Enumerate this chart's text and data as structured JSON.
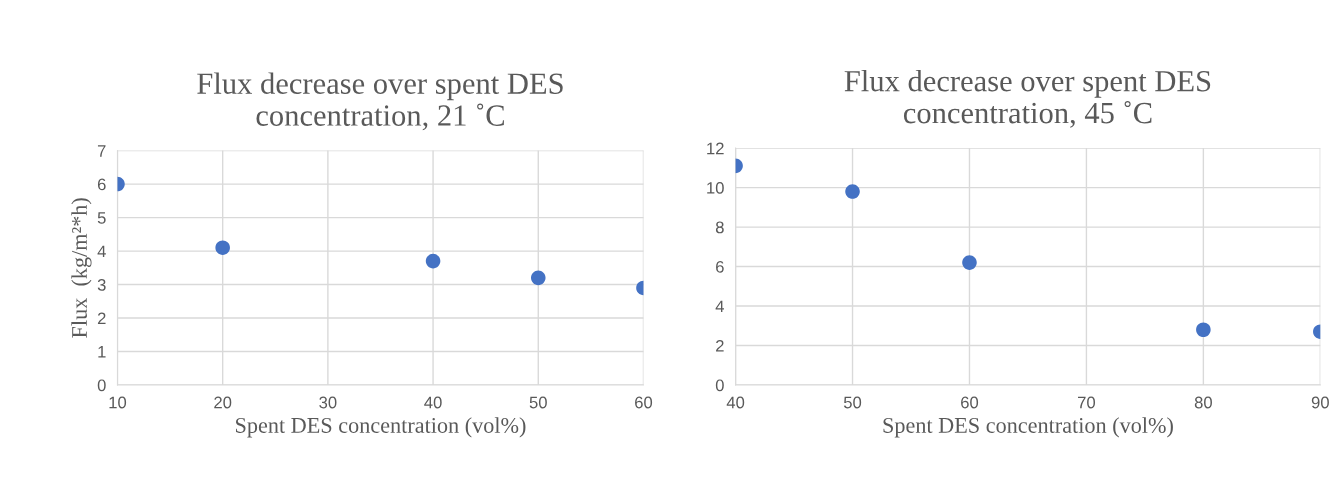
{
  "chart_data": [
    {
      "type": "scatter",
      "title": "Flux decrease over spent DES\nconcentration, 21 ˚C",
      "xlabel": "Spent DES concentration (vol%)",
      "ylabel": "Flux  (kg/m²*h)",
      "x": [
        10,
        20,
        40,
        50,
        60
      ],
      "series": [
        {
          "color": "#4472c4",
          "values": [
            6.0,
            4.1,
            3.7,
            3.2,
            2.9
          ]
        }
      ],
      "xlim": [
        10,
        60
      ],
      "xticks": [
        10,
        20,
        30,
        40,
        50,
        60
      ],
      "ylim": [
        0,
        7
      ],
      "yticks": [
        0,
        1,
        2,
        3,
        4,
        5,
        6,
        7
      ],
      "grid": true,
      "marker": "circle"
    },
    {
      "type": "scatter",
      "title": "Flux decrease over spent DES\nconcentration, 45 ˚C",
      "xlabel": "Spent DES concentration (vol%)",
      "x": [
        40,
        50,
        60,
        80,
        90
      ],
      "series": [
        {
          "color": "#4472c4",
          "values": [
            11.1,
            9.8,
            6.2,
            2.8,
            2.7
          ]
        }
      ],
      "xlim": [
        40,
        90
      ],
      "xticks": [
        40,
        50,
        60,
        70,
        80,
        90
      ],
      "ylim": [
        0,
        12
      ],
      "yticks": [
        0,
        2,
        4,
        6,
        8,
        10,
        12
      ],
      "grid": true,
      "marker": "circle"
    }
  ]
}
